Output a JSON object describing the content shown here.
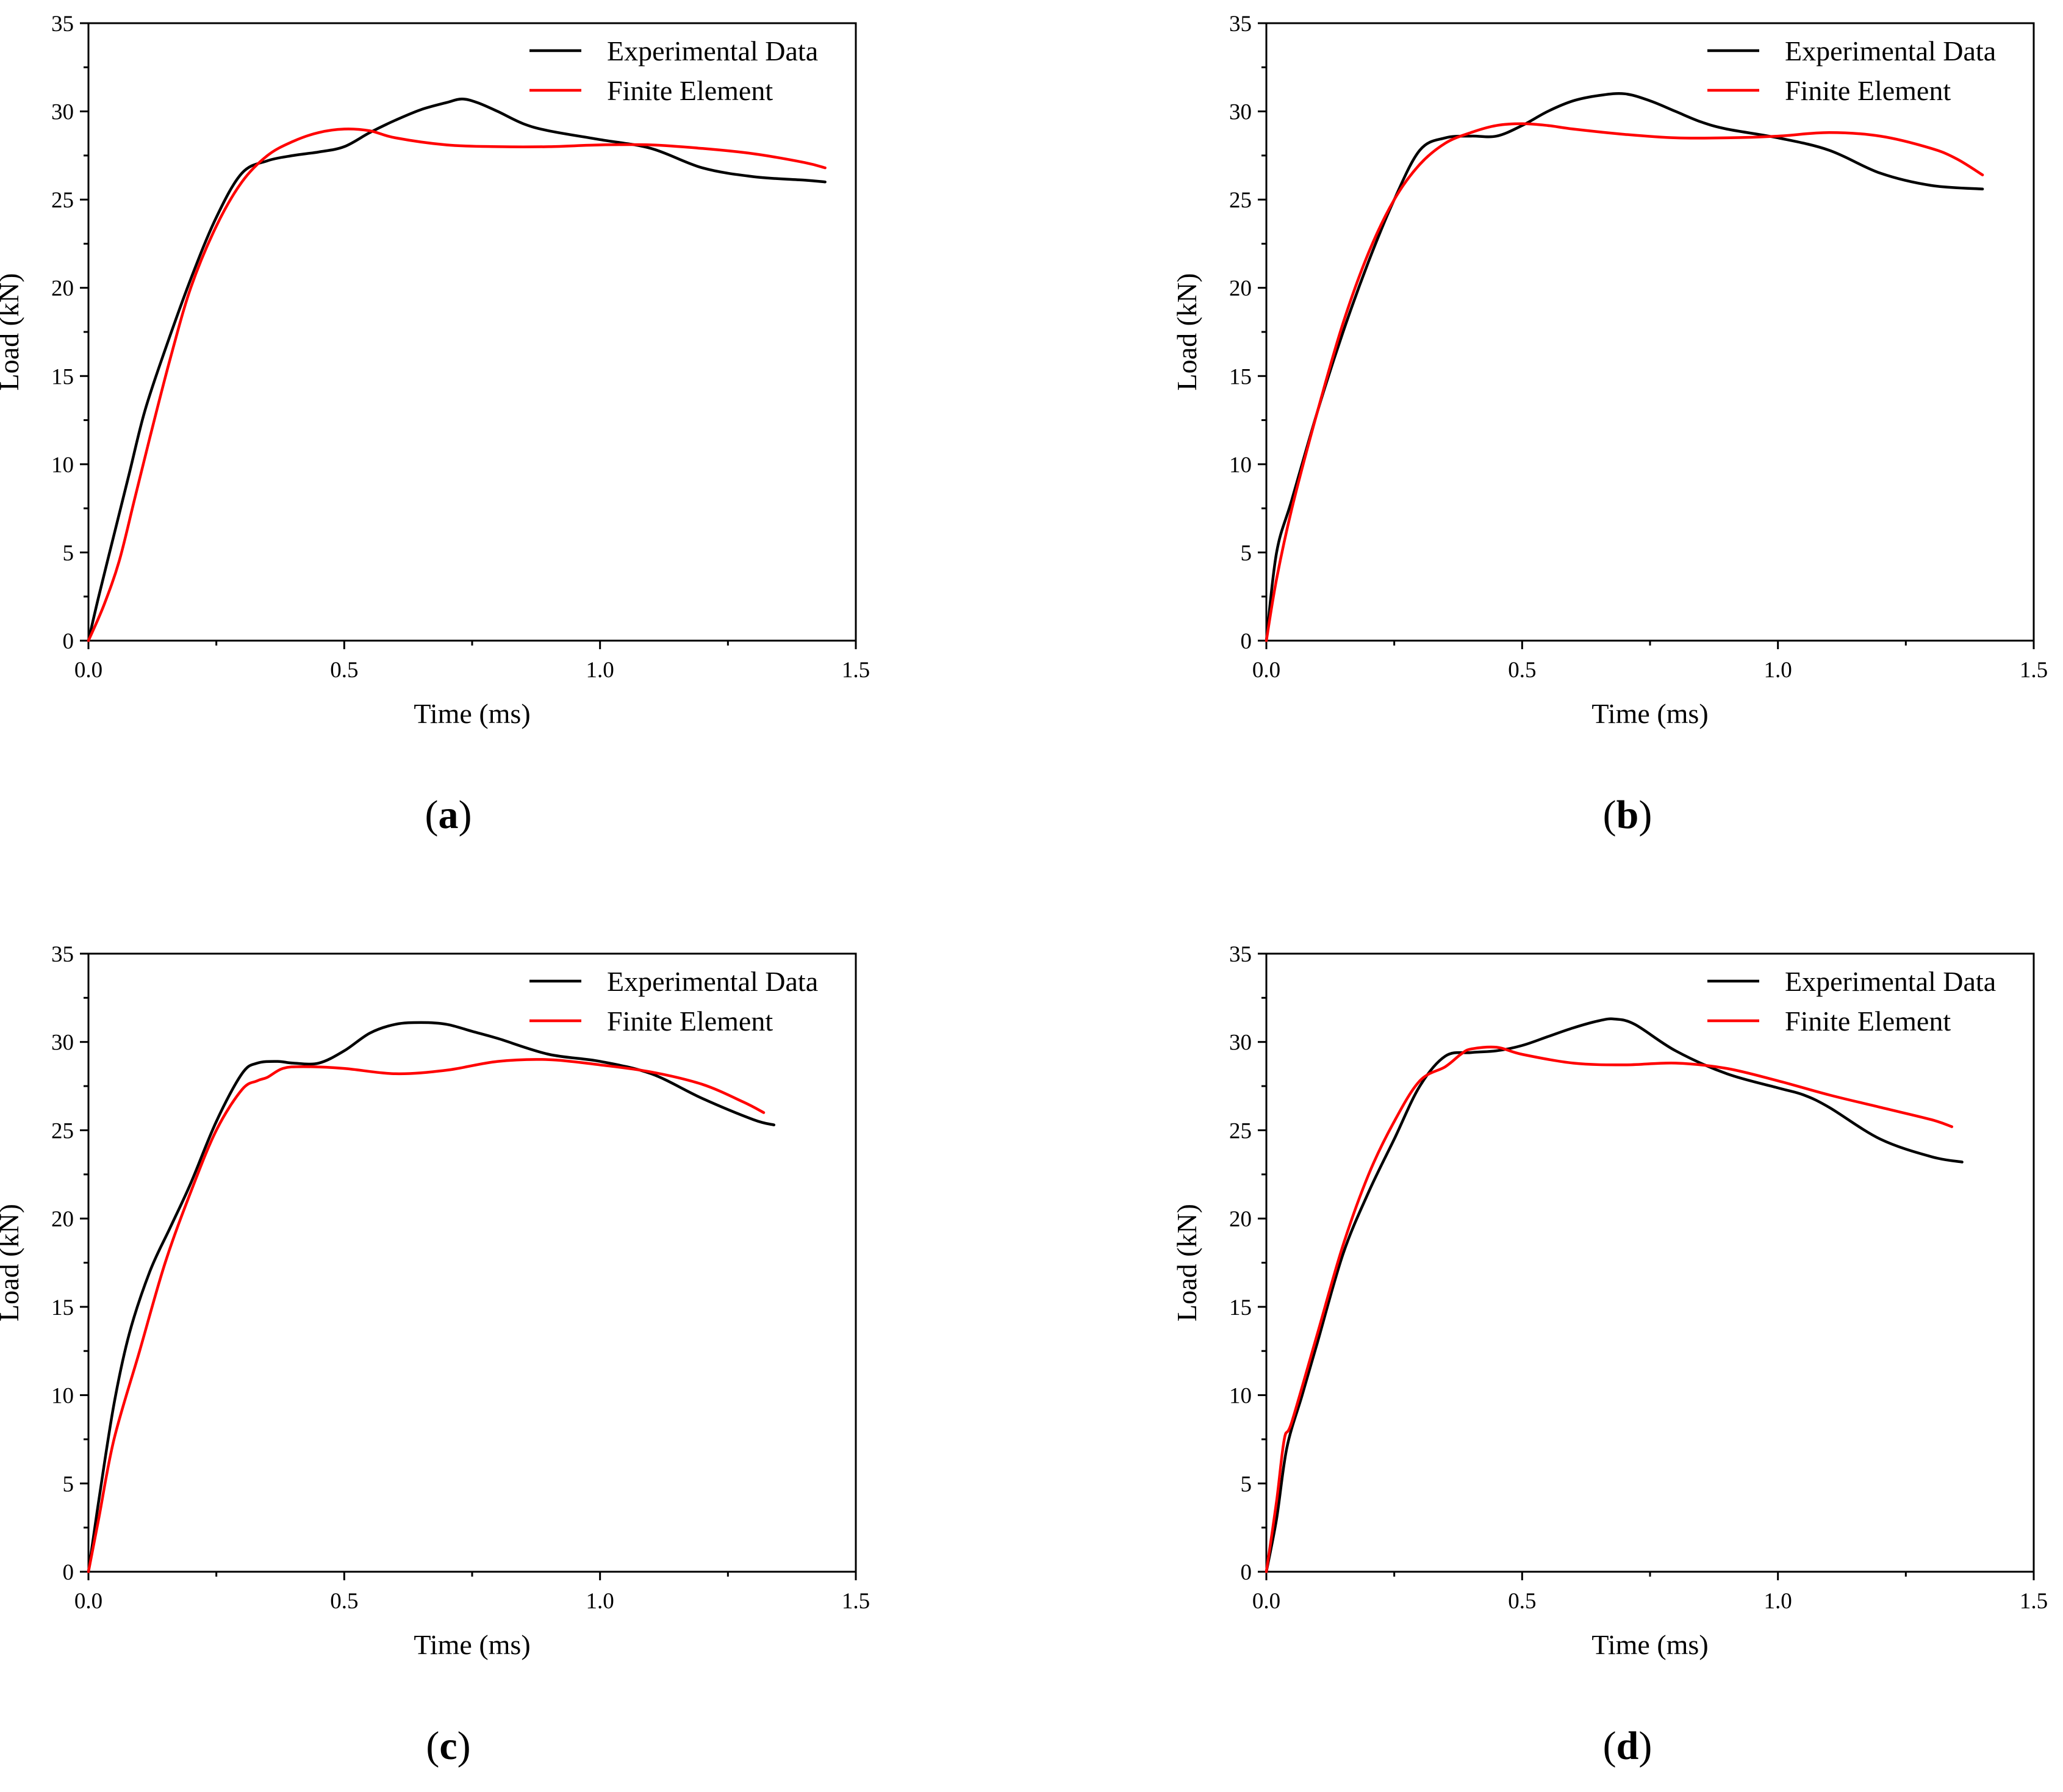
{
  "chart_data": [
    {
      "type": "line",
      "panel_label": "a",
      "xlabel": "Time (ms)",
      "ylabel": "Load (kN)",
      "xlim": [
        0,
        1.5
      ],
      "ylim": [
        0,
        35
      ],
      "xticks": [
        0,
        0.5,
        1.0,
        1.5
      ],
      "xtick_labels": [
        "0.0",
        "0.5",
        "1.0",
        "1.5"
      ],
      "yticks": [
        0,
        5,
        10,
        15,
        20,
        25,
        30,
        35
      ],
      "ytick_labels": [
        "0",
        "5",
        "10",
        "15",
        "20",
        "25",
        "30",
        "35"
      ],
      "legend_position": "top-right",
      "series": [
        {
          "name": "Experimental Data",
          "color": "#000000",
          "x": [
            0,
            0.02,
            0.05,
            0.08,
            0.11,
            0.15,
            0.2,
            0.25,
            0.3,
            0.35,
            0.4,
            0.45,
            0.5,
            0.55,
            0.6,
            0.65,
            0.7,
            0.73,
            0.76,
            0.8,
            0.85,
            0.9,
            1.0,
            1.1,
            1.2,
            1.3,
            1.4,
            1.44
          ],
          "y": [
            0,
            2.5,
            6,
            9.5,
            13,
            16.5,
            20.5,
            24,
            26.5,
            27.2,
            27.5,
            27.7,
            28,
            28.8,
            29.5,
            30.1,
            30.5,
            30.7,
            30.5,
            30,
            29.3,
            28.9,
            28.4,
            27.9,
            26.8,
            26.3,
            26.1,
            26
          ]
        },
        {
          "name": "Finite Element",
          "color": "#ff0000",
          "x": [
            0,
            0.03,
            0.06,
            0.09,
            0.12,
            0.16,
            0.2,
            0.25,
            0.3,
            0.35,
            0.4,
            0.45,
            0.5,
            0.55,
            0.6,
            0.7,
            0.8,
            0.9,
            1.0,
            1.1,
            1.2,
            1.3,
            1.4,
            1.44
          ],
          "y": [
            0,
            2,
            4.5,
            8,
            11.5,
            16,
            20,
            23.5,
            26,
            27.5,
            28.3,
            28.8,
            29,
            28.9,
            28.5,
            28.1,
            28,
            28,
            28.1,
            28.1,
            27.9,
            27.6,
            27.1,
            26.8
          ]
        }
      ]
    },
    {
      "type": "line",
      "panel_label": "b",
      "xlabel": "Time (ms)",
      "ylabel": "Load (kN)",
      "xlim": [
        0,
        1.5
      ],
      "ylim": [
        0,
        35
      ],
      "xticks": [
        0,
        0.5,
        1.0,
        1.5
      ],
      "xtick_labels": [
        "0.0",
        "0.5",
        "1.0",
        "1.5"
      ],
      "yticks": [
        0,
        5,
        10,
        15,
        20,
        25,
        30,
        35
      ],
      "ytick_labels": [
        "0",
        "5",
        "10",
        "15",
        "20",
        "25",
        "30",
        "35"
      ],
      "legend_position": "top-right",
      "series": [
        {
          "name": "Experimental Data",
          "color": "#000000",
          "x": [
            0,
            0.02,
            0.05,
            0.1,
            0.15,
            0.2,
            0.25,
            0.3,
            0.35,
            0.4,
            0.45,
            0.5,
            0.55,
            0.6,
            0.65,
            0.7,
            0.75,
            0.8,
            0.85,
            0.9,
            1.0,
            1.1,
            1.2,
            1.3,
            1.4
          ],
          "y": [
            0,
            5,
            8,
            13,
            17.5,
            21.5,
            25,
            27.8,
            28.5,
            28.6,
            28.6,
            29.2,
            30,
            30.6,
            30.9,
            31,
            30.6,
            30,
            29.4,
            29,
            28.5,
            27.8,
            26.5,
            25.8,
            25.6
          ]
        },
        {
          "name": "Finite Element",
          "color": "#ff0000",
          "x": [
            0,
            0.02,
            0.05,
            0.1,
            0.15,
            0.2,
            0.25,
            0.3,
            0.35,
            0.4,
            0.45,
            0.5,
            0.55,
            0.6,
            0.7,
            0.8,
            0.9,
            1.0,
            1.1,
            1.2,
            1.3,
            1.35,
            1.4
          ],
          "y": [
            0,
            3.5,
            7.5,
            13,
            18,
            22,
            25,
            27,
            28.2,
            28.8,
            29.2,
            29.3,
            29.2,
            29,
            28.7,
            28.5,
            28.5,
            28.6,
            28.8,
            28.6,
            27.9,
            27.3,
            26.4
          ]
        }
      ]
    },
    {
      "type": "line",
      "panel_label": "c",
      "xlabel": "Time (ms)",
      "ylabel": "Load (kN)",
      "xlim": [
        0,
        1.5
      ],
      "ylim": [
        0,
        35
      ],
      "xticks": [
        0,
        0.5,
        1.0,
        1.5
      ],
      "xtick_labels": [
        "0.0",
        "0.5",
        "1.0",
        "1.5"
      ],
      "yticks": [
        0,
        5,
        10,
        15,
        20,
        25,
        30,
        35
      ],
      "ytick_labels": [
        "0",
        "5",
        "10",
        "15",
        "20",
        "25",
        "30",
        "35"
      ],
      "legend_position": "top-right",
      "series": [
        {
          "name": "Experimental Data",
          "color": "#000000",
          "x": [
            0,
            0.02,
            0.05,
            0.08,
            0.12,
            0.16,
            0.2,
            0.25,
            0.3,
            0.33,
            0.37,
            0.4,
            0.45,
            0.5,
            0.55,
            0.6,
            0.65,
            0.7,
            0.75,
            0.8,
            0.9,
            1.0,
            1.1,
            1.2,
            1.3,
            1.34
          ],
          "y": [
            0,
            4,
            9.5,
            13.5,
            17,
            19.5,
            22,
            25.5,
            28.2,
            28.8,
            28.9,
            28.8,
            28.8,
            29.5,
            30.5,
            31,
            31.1,
            31,
            30.6,
            30.2,
            29.3,
            28.9,
            28.2,
            26.8,
            25.6,
            25.3
          ]
        },
        {
          "name": "Finite Element",
          "color": "#ff0000",
          "x": [
            0,
            0.02,
            0.05,
            0.1,
            0.15,
            0.2,
            0.25,
            0.3,
            0.33,
            0.35,
            0.38,
            0.42,
            0.5,
            0.6,
            0.7,
            0.8,
            0.9,
            1.0,
            1.1,
            1.2,
            1.28,
            1.32
          ],
          "y": [
            0,
            3,
            7.5,
            12.5,
            17.5,
            21.5,
            25,
            27.3,
            27.8,
            28,
            28.5,
            28.6,
            28.5,
            28.2,
            28.4,
            28.9,
            29,
            28.7,
            28.3,
            27.6,
            26.6,
            26
          ]
        }
      ]
    },
    {
      "type": "line",
      "panel_label": "d",
      "xlabel": "Time (ms)",
      "ylabel": "Load (kN)",
      "xlim": [
        0,
        1.5
      ],
      "ylim": [
        0,
        35
      ],
      "xticks": [
        0,
        0.5,
        1.0,
        1.5
      ],
      "xtick_labels": [
        "0.0",
        "0.5",
        "1.0",
        "1.5"
      ],
      "yticks": [
        0,
        5,
        10,
        15,
        20,
        25,
        30,
        35
      ],
      "ytick_labels": [
        "0",
        "5",
        "10",
        "15",
        "20",
        "25",
        "30",
        "35"
      ],
      "legend_position": "top-right",
      "series": [
        {
          "name": "Experimental Data",
          "color": "#000000",
          "x": [
            0,
            0.02,
            0.04,
            0.07,
            0.1,
            0.15,
            0.2,
            0.25,
            0.3,
            0.35,
            0.4,
            0.45,
            0.5,
            0.55,
            0.6,
            0.65,
            0.68,
            0.72,
            0.8,
            0.9,
            1.0,
            1.05,
            1.1,
            1.2,
            1.3,
            1.36
          ],
          "y": [
            0,
            3,
            7,
            10,
            13,
            18,
            21.5,
            24.5,
            27.5,
            29.2,
            29.4,
            29.5,
            29.8,
            30.3,
            30.8,
            31.2,
            31.3,
            31,
            29.5,
            28.2,
            27.4,
            27,
            26.3,
            24.5,
            23.5,
            23.2
          ]
        },
        {
          "name": "Finite Element",
          "color": "#ff0000",
          "x": [
            0,
            0.02,
            0.035,
            0.05,
            0.1,
            0.15,
            0.2,
            0.25,
            0.3,
            0.35,
            0.38,
            0.4,
            0.45,
            0.5,
            0.6,
            0.7,
            0.8,
            0.9,
            1.0,
            1.1,
            1.2,
            1.3,
            1.34
          ],
          "y": [
            0,
            4,
            7.5,
            8.5,
            13.5,
            18.5,
            22.5,
            25.5,
            27.8,
            28.6,
            29.3,
            29.6,
            29.7,
            29.3,
            28.8,
            28.7,
            28.8,
            28.5,
            27.8,
            27,
            26.3,
            25.6,
            25.2
          ]
        }
      ]
    }
  ]
}
